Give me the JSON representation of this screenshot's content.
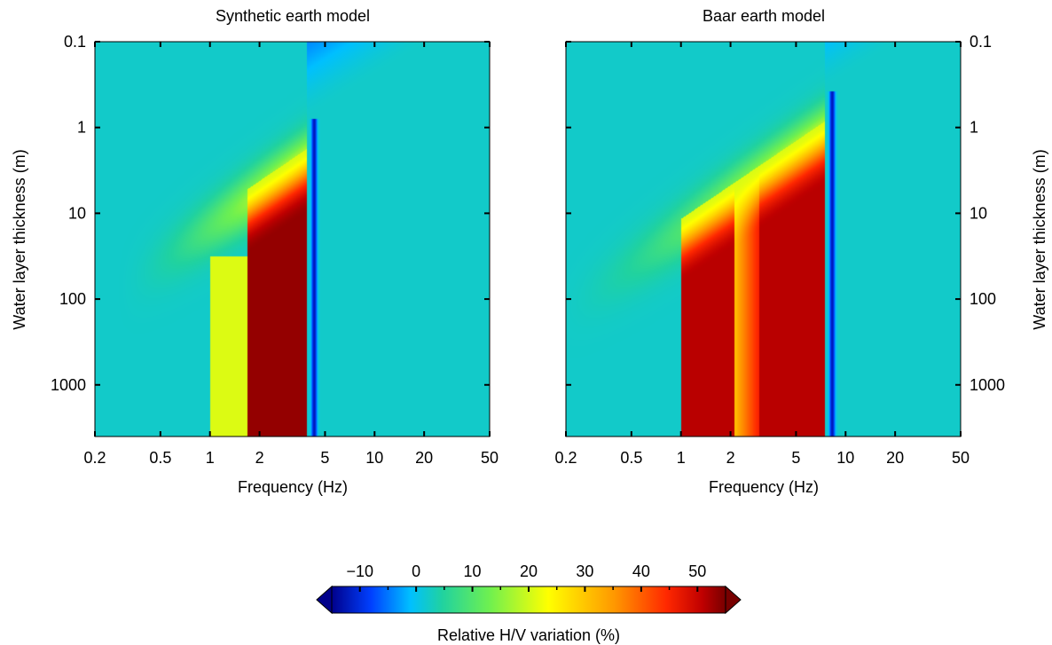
{
  "chart_data": [
    {
      "type": "heatmap",
      "title": "Synthetic earth model",
      "xlabel": "Frequency (Hz)",
      "ylabel": "Water layer thickness (m)",
      "xscale": "log",
      "yscale": "log",
      "y_inverted": true,
      "xlim": [
        0.2,
        50
      ],
      "ylim": [
        0.1,
        4000
      ],
      "xticks": [
        0.2,
        0.5,
        1,
        2,
        5,
        10,
        20,
        50
      ],
      "xticklabels": [
        "0.2",
        "0.5",
        "1",
        "2",
        "5",
        "10",
        "20",
        "50"
      ],
      "yticks": [
        0.1,
        1,
        10,
        100,
        1000
      ],
      "yticklabels": [
        "0.1",
        "1",
        "10",
        "100",
        "1000"
      ],
      "ylabel_side": "left",
      "field": {
        "background": 5,
        "low_thickness_region": -4,
        "resonance_band_hz": [
          1.7,
          3.9
        ],
        "resonance_peak": 52,
        "transition_band_hz": [
          1.0,
          1.7
        ],
        "transition_value": 22,
        "trough_hz": 4.3,
        "trough_value": -12,
        "resonance_onset_thickness_m": 2.5,
        "diagonal_ridge_value": 22
      }
    },
    {
      "type": "heatmap",
      "title": "Baar earth model",
      "xlabel": "Frequency (Hz)",
      "ylabel": "Water layer thickness (m)",
      "xscale": "log",
      "yscale": "log",
      "y_inverted": true,
      "xlim": [
        0.2,
        50
      ],
      "ylim": [
        0.1,
        4000
      ],
      "xticks": [
        0.2,
        0.5,
        1,
        2,
        5,
        10,
        20,
        50
      ],
      "xticklabels": [
        "0.2",
        "0.5",
        "1",
        "2",
        "5",
        "10",
        "20",
        "50"
      ],
      "yticks": [
        0.1,
        1,
        10,
        100,
        1000
      ],
      "yticklabels": [
        "0.1",
        "1",
        "10",
        "100",
        "1000"
      ],
      "ylabel_side": "right",
      "field": {
        "background": 5,
        "low_thickness_region": -4,
        "resonance_band_hz": [
          1.0,
          7.5
        ],
        "resonance_peak": 48,
        "secondary_gap_hz": [
          2.1,
          3.0
        ],
        "secondary_gap_value": 28,
        "trough_hz": 8.3,
        "trough_value": -12,
        "resonance_onset_thickness_m": 1.2,
        "diagonal_ridge_value": 22
      }
    }
  ],
  "colorbar": {
    "label": "Relative H/V variation (%)",
    "range": [
      -15,
      55
    ],
    "ticks": [
      -10,
      0,
      10,
      20,
      30,
      40,
      50
    ],
    "ticklabels": [
      "−10",
      "0",
      "10",
      "20",
      "30",
      "40",
      "50"
    ],
    "minor_ticks": [
      -5,
      5,
      15,
      25,
      35,
      45
    ],
    "extend": "both",
    "colormap": [
      "#00008b",
      "#0040ff",
      "#00c0ff",
      "#20d2a0",
      "#6ef050",
      "#ffff00",
      "#ff9600",
      "#ff2800",
      "#c00000",
      "#780000"
    ]
  }
}
